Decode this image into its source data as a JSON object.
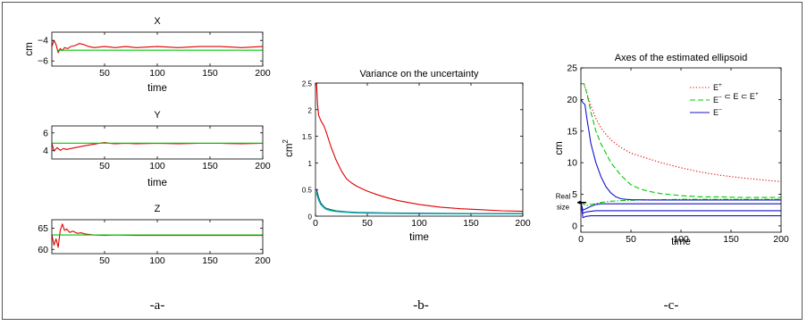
{
  "colors": {
    "red": "#e00000",
    "green": "#00c800",
    "blue": "#1414c8",
    "cyan": "#00a8c0",
    "axis": "#000000"
  },
  "captions": [
    "-a-",
    "-b-",
    "-c-"
  ],
  "chart_data": [
    {
      "id": "a-x",
      "type": "line",
      "title": "X",
      "xlabel": "time",
      "ylabel": "cm",
      "xlim": [
        0,
        200
      ],
      "ylim": [
        -6.5,
        -3.2
      ],
      "xticks": [
        50,
        100,
        150,
        200
      ],
      "yticks": [
        -4,
        -6
      ],
      "series": [
        {
          "color": "red",
          "x": [
            0,
            2,
            4,
            6,
            8,
            10,
            12,
            15,
            18,
            22,
            26,
            30,
            35,
            40,
            50,
            60,
            70,
            80,
            100,
            120,
            140,
            160,
            180,
            200
          ],
          "y": [
            -4.6,
            -4.0,
            -4.4,
            -5.2,
            -4.8,
            -5.0,
            -4.7,
            -4.8,
            -4.6,
            -4.5,
            -4.3,
            -4.4,
            -4.6,
            -4.7,
            -4.6,
            -4.7,
            -4.6,
            -4.7,
            -4.6,
            -4.7,
            -4.6,
            -4.6,
            -4.7,
            -4.6
          ]
        },
        {
          "color": "green",
          "x": [
            5,
            200
          ],
          "y": [
            -4.95,
            -4.95
          ]
        }
      ]
    },
    {
      "id": "a-y",
      "type": "line",
      "title": "Y",
      "xlabel": "time",
      "ylabel": "",
      "xlim": [
        0,
        200
      ],
      "ylim": [
        3.0,
        6.8
      ],
      "xticks": [
        50,
        100,
        150,
        200
      ],
      "yticks": [
        6,
        4
      ],
      "series": [
        {
          "color": "red",
          "x": [
            0,
            2,
            5,
            8,
            11,
            14,
            18,
            22,
            26,
            30,
            35,
            40,
            45,
            50,
            55,
            60,
            70,
            80,
            100,
            120,
            140,
            160,
            180,
            200
          ],
          "y": [
            4.8,
            3.9,
            4.3,
            4.0,
            4.2,
            4.1,
            4.2,
            4.3,
            4.4,
            4.5,
            4.6,
            4.7,
            4.8,
            4.9,
            4.8,
            4.75,
            4.8,
            4.75,
            4.8,
            4.75,
            4.8,
            4.8,
            4.75,
            4.8
          ]
        },
        {
          "color": "green",
          "x": [
            0,
            200
          ],
          "y": [
            4.82,
            4.82
          ]
        }
      ]
    },
    {
      "id": "a-z",
      "type": "line",
      "title": "Z",
      "xlabel": "",
      "ylabel": "",
      "xlim": [
        0,
        200
      ],
      "ylim": [
        59,
        67
      ],
      "xticks": [
        50,
        100,
        150,
        200
      ],
      "yticks": [
        65,
        60
      ],
      "series": [
        {
          "color": "red",
          "x": [
            0,
            2,
            4,
            6,
            8,
            10,
            12,
            14,
            17,
            20,
            24,
            28,
            32,
            36,
            40,
            50,
            60,
            80,
            100,
            130,
            160,
            200
          ],
          "y": [
            63.5,
            61,
            62.5,
            60.5,
            64.5,
            66,
            64.5,
            64.8,
            64,
            64.3,
            63.8,
            63.9,
            63.6,
            63.5,
            63.4,
            63.3,
            63.4,
            63.3,
            63.3,
            63.3,
            63.3,
            63.3
          ]
        },
        {
          "color": "green",
          "x": [
            0,
            200
          ],
          "y": [
            63.4,
            63.4
          ]
        }
      ]
    },
    {
      "id": "b",
      "type": "line",
      "title": "Variance on the uncertainty",
      "xlabel": "time",
      "ylabel": "cm",
      "ylabel_sup": "2",
      "xlim": [
        0,
        200
      ],
      "ylim": [
        0,
        2.5
      ],
      "xticks": [
        0,
        50,
        100,
        150,
        200
      ],
      "yticks": [
        0,
        0.5,
        1,
        1.5,
        2,
        2.5
      ],
      "series": [
        {
          "color": "red",
          "x": [
            1,
            2,
            3,
            5,
            8,
            10,
            15,
            20,
            25,
            30,
            35,
            40,
            50,
            60,
            70,
            80,
            100,
            120,
            140,
            160,
            180,
            200
          ],
          "y": [
            2.5,
            2.1,
            1.9,
            1.8,
            1.7,
            1.6,
            1.3,
            1.05,
            0.85,
            0.7,
            0.62,
            0.56,
            0.47,
            0.4,
            0.34,
            0.29,
            0.22,
            0.17,
            0.14,
            0.12,
            0.1,
            0.09
          ]
        },
        {
          "color": "blue",
          "x": [
            1,
            3,
            5,
            8,
            10,
            15,
            20,
            30,
            40,
            50,
            70,
            100,
            150,
            200
          ],
          "y": [
            0.5,
            0.35,
            0.25,
            0.18,
            0.15,
            0.12,
            0.1,
            0.08,
            0.07,
            0.065,
            0.06,
            0.055,
            0.05,
            0.05
          ]
        },
        {
          "color": "green",
          "x": [
            1,
            3,
            5,
            8,
            10,
            15,
            20,
            30,
            40,
            50,
            70,
            100,
            150,
            200
          ],
          "y": [
            0.45,
            0.32,
            0.23,
            0.17,
            0.14,
            0.11,
            0.095,
            0.075,
            0.065,
            0.06,
            0.055,
            0.05,
            0.045,
            0.045
          ]
        },
        {
          "color": "cyan",
          "x": [
            1,
            3,
            5,
            8,
            10,
            15,
            20,
            30,
            40,
            50,
            70,
            100,
            150,
            200
          ],
          "y": [
            0.42,
            0.3,
            0.22,
            0.16,
            0.13,
            0.1,
            0.085,
            0.07,
            0.06,
            0.055,
            0.05,
            0.047,
            0.044,
            0.042
          ]
        }
      ]
    },
    {
      "id": "c",
      "type": "line",
      "title": "Axes of the estimated ellipsoid",
      "xlabel": "time",
      "ylabel": "cm",
      "xlim": [
        0,
        200
      ],
      "ylim": [
        -1,
        25
      ],
      "xticks": [
        0,
        50,
        100,
        150,
        200
      ],
      "yticks": [
        0,
        5,
        10,
        15,
        20,
        25
      ],
      "real_size_label": [
        "Real",
        "size"
      ],
      "real_size_value": 3.7,
      "legend": {
        "position": "right",
        "entries": [
          {
            "label": "E+",
            "color": "red",
            "style": "dotted"
          },
          {
            "label": "E- ⊂ E ⊂ E+",
            "color": "green",
            "style": "dashed"
          },
          {
            "label": "E-",
            "color": "blue",
            "style": "solid"
          }
        ]
      },
      "series": [
        {
          "color": "red",
          "style": "dotted",
          "x": [
            0,
            3,
            6,
            10,
            15,
            20,
            25,
            30,
            40,
            50,
            60,
            70,
            80,
            100,
            120,
            140,
            160,
            180,
            200
          ],
          "y": [
            22.5,
            22.5,
            21,
            19,
            17,
            15.5,
            14.5,
            13.6,
            12.4,
            11.5,
            11,
            10.5,
            10,
            9.2,
            8.5,
            8,
            7.6,
            7.3,
            7
          ]
        },
        {
          "color": "green",
          "style": "dashed",
          "x": [
            0,
            3,
            6,
            10,
            15,
            20,
            25,
            30,
            40,
            50,
            60,
            70,
            80,
            100,
            120,
            140,
            160,
            180,
            200
          ],
          "y": [
            22.5,
            22.5,
            21,
            18,
            15,
            13,
            11.5,
            10,
            8,
            6.5,
            5.8,
            5.4,
            5.1,
            4.8,
            4.6,
            4.6,
            4.5,
            4.5,
            4.5
          ]
        },
        {
          "color": "green",
          "style": "dashdot",
          "x": [
            0,
            5,
            10,
            20,
            30,
            40,
            60,
            80,
            100,
            150,
            200
          ],
          "y": [
            3.8,
            3.2,
            3.4,
            3.7,
            3.9,
            4.0,
            4.1,
            4.15,
            4.2,
            4.2,
            4.2
          ]
        },
        {
          "color": "blue",
          "style": "solid",
          "x": [
            0,
            2,
            4,
            6,
            8,
            10,
            15,
            20,
            25,
            30,
            35,
            40,
            45,
            50,
            70,
            100,
            150,
            200
          ],
          "y": [
            20,
            19.5,
            19.2,
            17,
            15,
            13,
            10,
            7.8,
            6.2,
            5.2,
            4.6,
            4.3,
            4.2,
            4.15,
            4.1,
            4.1,
            4.1,
            4.1
          ]
        },
        {
          "color": "blue",
          "style": "solid",
          "x": [
            0,
            2,
            5,
            10,
            15,
            20,
            25,
            30,
            200
          ],
          "y": [
            3.8,
            2.5,
            2.7,
            3.1,
            3.4,
            3.5,
            3.5,
            3.5,
            3.5
          ]
        },
        {
          "color": "blue",
          "style": "solid",
          "x": [
            0,
            2,
            5,
            10,
            15,
            20,
            30,
            200
          ],
          "y": [
            3.8,
            2.0,
            2.2,
            2.3,
            2.4,
            2.4,
            2.4,
            2.4
          ]
        },
        {
          "color": "blue",
          "style": "solid",
          "x": [
            0,
            2,
            5,
            10,
            15,
            20,
            30,
            200
          ],
          "y": [
            3.8,
            1.3,
            1.5,
            1.6,
            1.6,
            1.6,
            1.6,
            1.6
          ]
        }
      ]
    }
  ]
}
